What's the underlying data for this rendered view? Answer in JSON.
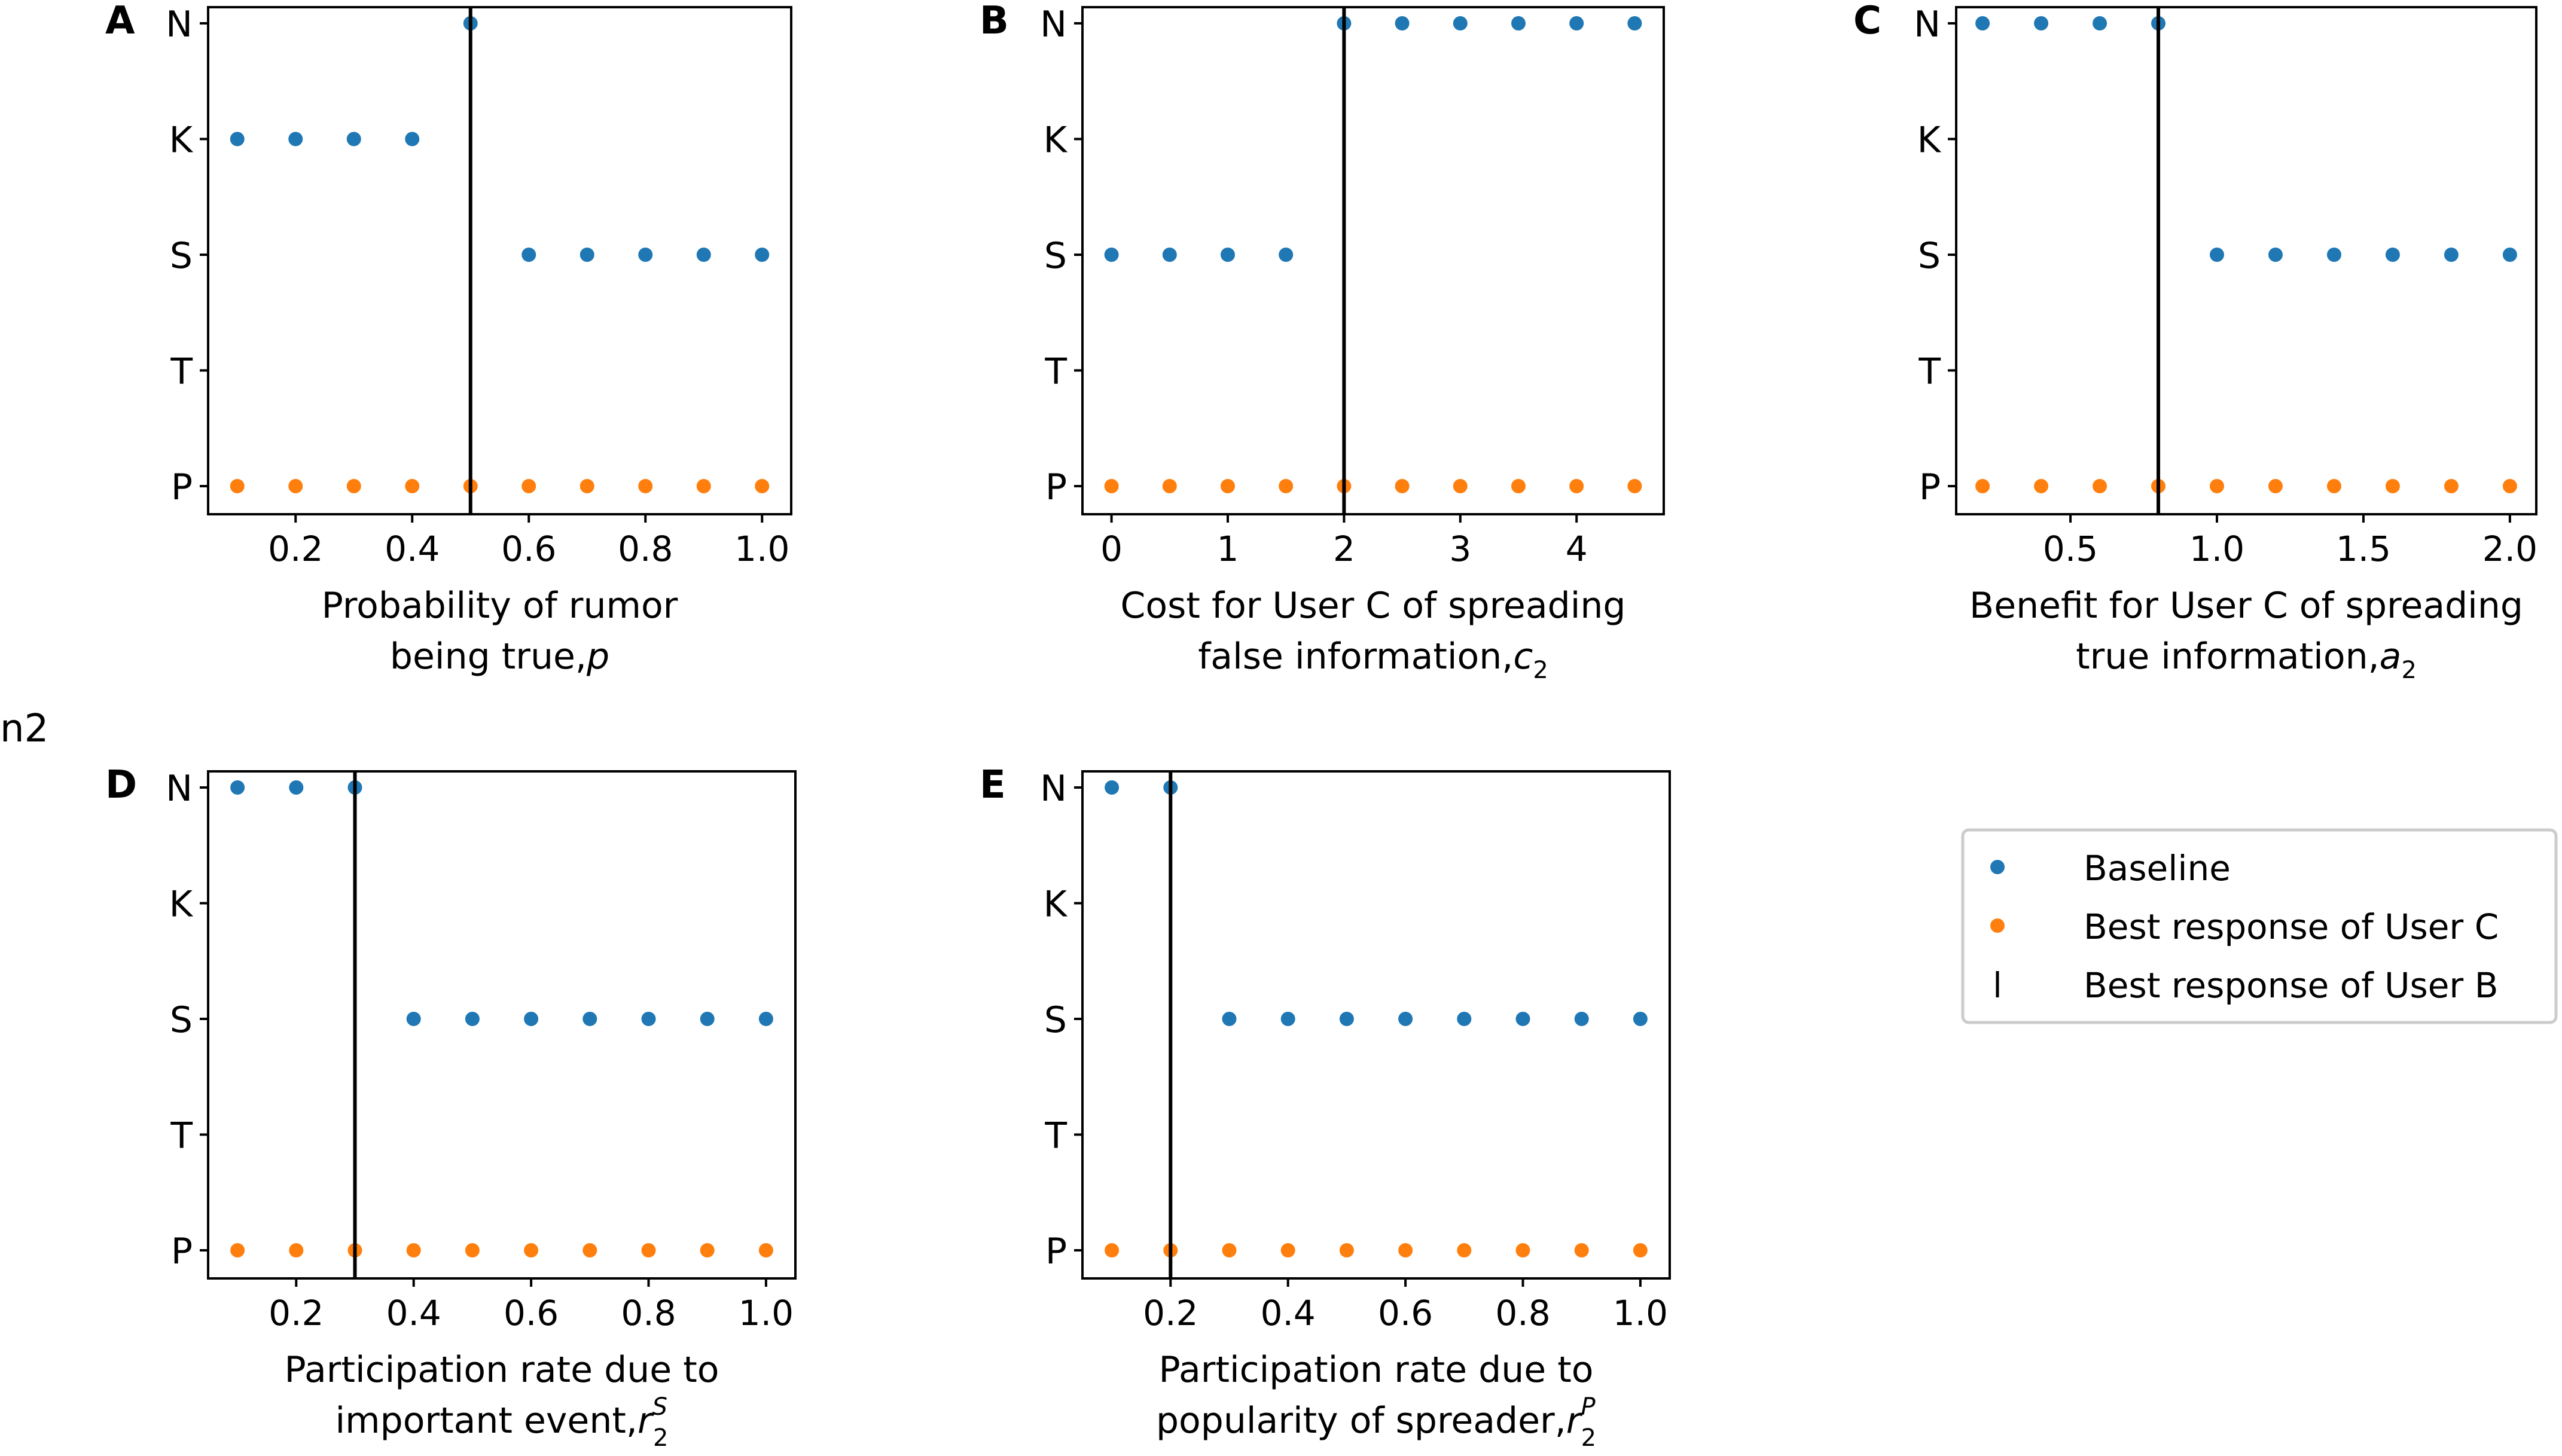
{
  "stray_label": "n2",
  "colors": {
    "baseline": "#1f77b4",
    "user_c": "#ff7f0e",
    "user_b": "#000000"
  },
  "legend": {
    "items": [
      {
        "label": "Baseline",
        "marker": "dot",
        "color": "#1f77b4"
      },
      {
        "label": "Best response of User C",
        "marker": "dot",
        "color": "#ff7f0e"
      },
      {
        "label": "Best response of User B",
        "marker": "vline",
        "color": "#000000"
      }
    ]
  },
  "chart_data": [
    {
      "panel": "A",
      "type": "scatter",
      "xlabel": "Probability of rumor being true,",
      "xlabel_lines": [
        "Probability of rumor",
        "being true,"
      ],
      "xvar": {
        "base": "p",
        "sub": "",
        "sup": ""
      },
      "categories": [
        "P",
        "T",
        "S",
        "K",
        "N"
      ],
      "xlim": [
        0.05,
        1.05
      ],
      "xticks": [
        0.2,
        0.4,
        0.6,
        0.8,
        1.0
      ],
      "xtick_labels": [
        "0.2",
        "0.4",
        "0.6",
        "0.8",
        "1.0"
      ],
      "series": [
        {
          "name": "Baseline",
          "x": [
            0.1,
            0.2,
            0.3,
            0.4,
            0.5,
            0.6,
            0.7,
            0.8,
            0.9,
            1.0
          ],
          "y": [
            "K",
            "K",
            "K",
            "K",
            "N",
            "S",
            "S",
            "S",
            "S",
            "S"
          ]
        },
        {
          "name": "Best response of User C",
          "x": [
            0.1,
            0.2,
            0.3,
            0.4,
            0.5,
            0.6,
            0.7,
            0.8,
            0.9,
            1.0
          ],
          "y": [
            "P",
            "P",
            "P",
            "P",
            "P",
            "P",
            "P",
            "P",
            "P",
            "P"
          ]
        }
      ],
      "vline": {
        "name": "Best response of User B",
        "x": 0.5
      }
    },
    {
      "panel": "B",
      "type": "scatter",
      "xlabel": "Cost for User C of spreading false information,",
      "xlabel_lines": [
        "Cost for User C of spreading",
        "false information,"
      ],
      "xvar": {
        "base": "c",
        "sub": "2",
        "sup": ""
      },
      "categories": [
        "P",
        "T",
        "S",
        "K",
        "N"
      ],
      "xlim": [
        -0.25,
        4.75
      ],
      "xticks": [
        0,
        1,
        2,
        3,
        4
      ],
      "xtick_labels": [
        "0",
        "1",
        "2",
        "3",
        "4"
      ],
      "series": [
        {
          "name": "Baseline",
          "x": [
            0,
            0.5,
            1.0,
            1.5,
            2.0,
            2.5,
            3.0,
            3.5,
            4.0,
            4.5
          ],
          "y": [
            "S",
            "S",
            "S",
            "S",
            "N",
            "N",
            "N",
            "N",
            "N",
            "N"
          ]
        },
        {
          "name": "Best response of User C",
          "x": [
            0,
            0.5,
            1.0,
            1.5,
            2.0,
            2.5,
            3.0,
            3.5,
            4.0,
            4.5
          ],
          "y": [
            "P",
            "P",
            "P",
            "P",
            "P",
            "P",
            "P",
            "P",
            "P",
            "P"
          ]
        }
      ],
      "vline": {
        "name": "Best response of User B",
        "x": 2.0
      }
    },
    {
      "panel": "C",
      "type": "scatter",
      "xlabel": "Benefit for User C of spreading true information,",
      "xlabel_lines": [
        "Benefit for User C of spreading",
        "true information,"
      ],
      "xvar": {
        "base": "a",
        "sub": "2",
        "sup": ""
      },
      "categories": [
        "P",
        "T",
        "S",
        "K",
        "N"
      ],
      "xlim": [
        0.11,
        2.09
      ],
      "xticks": [
        0.5,
        1.0,
        1.5,
        2.0
      ],
      "xtick_labels": [
        "0.5",
        "1.0",
        "1.5",
        "2.0"
      ],
      "series": [
        {
          "name": "Baseline",
          "x": [
            0.2,
            0.4,
            0.6,
            0.8,
            1.0,
            1.2,
            1.4,
            1.6,
            1.8,
            2.0
          ],
          "y": [
            "N",
            "N",
            "N",
            "N",
            "S",
            "S",
            "S",
            "S",
            "S",
            "S"
          ]
        },
        {
          "name": "Best response of User C",
          "x": [
            0.2,
            0.4,
            0.6,
            0.8,
            1.0,
            1.2,
            1.4,
            1.6,
            1.8,
            2.0
          ],
          "y": [
            "P",
            "P",
            "P",
            "P",
            "P",
            "P",
            "P",
            "P",
            "P",
            "P"
          ]
        }
      ],
      "vline": {
        "name": "Best response of User B",
        "x": 0.8
      }
    },
    {
      "panel": "D",
      "type": "scatter",
      "xlabel": "Participation rate due to important event,",
      "xlabel_lines": [
        "Participation rate due to",
        "important event,"
      ],
      "xvar": {
        "base": "r",
        "sub": "2",
        "sup": "S"
      },
      "categories": [
        "P",
        "T",
        "S",
        "K",
        "N"
      ],
      "xlim": [
        0.05,
        1.05
      ],
      "xticks": [
        0.2,
        0.4,
        0.6,
        0.8,
        1.0
      ],
      "xtick_labels": [
        "0.2",
        "0.4",
        "0.6",
        "0.8",
        "1.0"
      ],
      "series": [
        {
          "name": "Baseline",
          "x": [
            0.1,
            0.2,
            0.3,
            0.4,
            0.5,
            0.6,
            0.7,
            0.8,
            0.9,
            1.0
          ],
          "y": [
            "N",
            "N",
            "N",
            "S",
            "S",
            "S",
            "S",
            "S",
            "S",
            "S"
          ]
        },
        {
          "name": "Best response of User C",
          "x": [
            0.1,
            0.2,
            0.3,
            0.4,
            0.5,
            0.6,
            0.7,
            0.8,
            0.9,
            1.0
          ],
          "y": [
            "P",
            "P",
            "P",
            "P",
            "P",
            "P",
            "P",
            "P",
            "P",
            "P"
          ]
        }
      ],
      "vline": {
        "name": "Best response of User B",
        "x": 0.3
      }
    },
    {
      "panel": "E",
      "type": "scatter",
      "xlabel": "Participation rate due to popularity of spreader,",
      "xlabel_lines": [
        "Participation rate due to",
        "popularity of spreader,"
      ],
      "xvar": {
        "base": "r",
        "sub": "2",
        "sup": "P"
      },
      "categories": [
        "P",
        "T",
        "S",
        "K",
        "N"
      ],
      "xlim": [
        0.05,
        1.05
      ],
      "xticks": [
        0.2,
        0.4,
        0.6,
        0.8,
        1.0
      ],
      "xtick_labels": [
        "0.2",
        "0.4",
        "0.6",
        "0.8",
        "1.0"
      ],
      "series": [
        {
          "name": "Baseline",
          "x": [
            0.1,
            0.2,
            0.3,
            0.4,
            0.5,
            0.6,
            0.7,
            0.8,
            0.9,
            1.0
          ],
          "y": [
            "N",
            "N",
            "S",
            "S",
            "S",
            "S",
            "S",
            "S",
            "S",
            "S"
          ]
        },
        {
          "name": "Best response of User C",
          "x": [
            0.1,
            0.2,
            0.3,
            0.4,
            0.5,
            0.6,
            0.7,
            0.8,
            0.9,
            1.0
          ],
          "y": [
            "P",
            "P",
            "P",
            "P",
            "P",
            "P",
            "P",
            "P",
            "P",
            "P"
          ]
        }
      ],
      "vline": {
        "name": "Best response of User B",
        "x": 0.2
      }
    }
  ]
}
